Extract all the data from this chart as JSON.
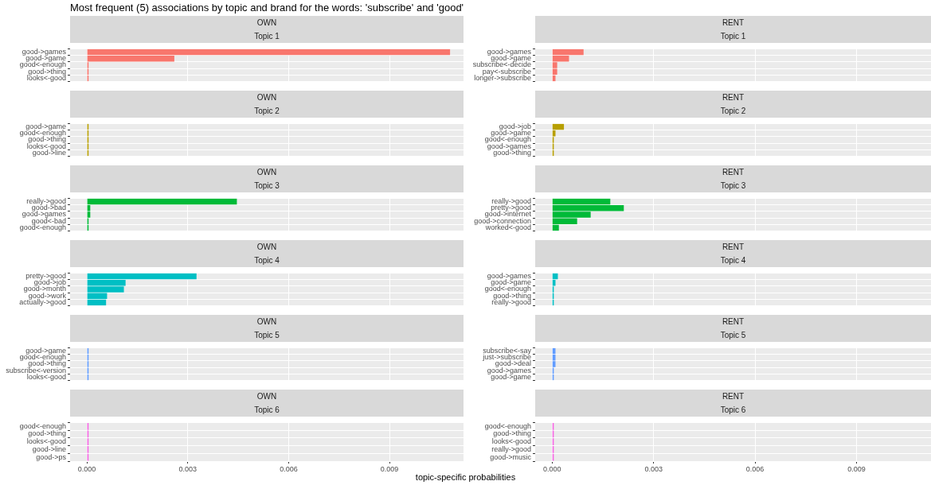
{
  "chart_data": [
    {
      "type": "bar",
      "orientation": "horizontal",
      "title": "OWN",
      "subtitle": "Topic 1",
      "annotations": [
        "Most frequent (5) associations by topic and brand for the words: 'subscribe' and 'good'"
      ],
      "categories": [
        "good->games",
        "good->game",
        "good<-enough",
        "good->thing",
        "looks<-good"
      ],
      "values": [
        0.0108,
        0.0026,
        5e-05,
        5e-05,
        5e-05
      ],
      "color": "#f8766d",
      "xlim": [
        -0.0005,
        0.0112
      ],
      "xticks": [
        0,
        0.003,
        0.006,
        0.009
      ],
      "grid": true,
      "tick_labels": "y"
    },
    {
      "type": "bar",
      "orientation": "horizontal",
      "title": "RENT",
      "subtitle": "Topic 1",
      "categories": [
        "good->games",
        "good->game",
        "subscribe<-decide",
        "pay<-subscribe",
        "longer->subscribe"
      ],
      "values": [
        0.00093,
        0.0005,
        0.00015,
        0.00015,
        0.0001
      ],
      "color": "#f8766d",
      "xlim": [
        -0.0005,
        0.0112
      ],
      "xticks": [
        0,
        0.003,
        0.006,
        0.009
      ],
      "grid": true,
      "tick_labels": "y"
    },
    {
      "type": "bar",
      "orientation": "horizontal",
      "title": "OWN",
      "subtitle": "Topic 2",
      "categories": [
        "good->game",
        "good<-enough",
        "good->thing",
        "looks<-good",
        "good->line"
      ],
      "values": [
        5e-05,
        5e-05,
        5e-05,
        5e-05,
        5e-05
      ],
      "color": "#b79f00",
      "xlim": [
        -0.0005,
        0.0112
      ],
      "xticks": [
        0,
        0.003,
        0.006,
        0.009
      ],
      "grid": true,
      "tick_labels": "y"
    },
    {
      "type": "bar",
      "orientation": "horizontal",
      "title": "RENT",
      "subtitle": "Topic 2",
      "categories": [
        "good->job",
        "good->game",
        "good<-enough",
        "good->games",
        "good->thing"
      ],
      "values": [
        0.00035,
        0.0001,
        5e-05,
        5e-05,
        5e-05
      ],
      "color": "#b79f00",
      "xlim": [
        -0.0005,
        0.0112
      ],
      "xticks": [
        0,
        0.003,
        0.006,
        0.009
      ],
      "grid": true,
      "tick_labels": "y"
    },
    {
      "type": "bar",
      "orientation": "horizontal",
      "title": "OWN",
      "subtitle": "Topic 3",
      "categories": [
        "really->good",
        "good->bad",
        "good->games",
        "good<-bad",
        "good<-enough"
      ],
      "values": [
        0.00446,
        0.0001,
        0.0001,
        5e-05,
        5e-05
      ],
      "color": "#00ba38",
      "xlim": [
        -0.0005,
        0.0112
      ],
      "xticks": [
        0,
        0.003,
        0.006,
        0.009
      ],
      "grid": true,
      "tick_labels": "y"
    },
    {
      "type": "bar",
      "orientation": "horizontal",
      "title": "RENT",
      "subtitle": "Topic 3",
      "categories": [
        "really->good",
        "pretty->good",
        "good->internet",
        "good->connection",
        "worked<-good"
      ],
      "values": [
        0.00172,
        0.00212,
        0.00114,
        0.00074,
        0.0002
      ],
      "color": "#00ba38",
      "xlim": [
        -0.0005,
        0.0112
      ],
      "xticks": [
        0,
        0.003,
        0.006,
        0.009
      ],
      "grid": true,
      "tick_labels": "y"
    },
    {
      "type": "bar",
      "orientation": "horizontal",
      "title": "OWN",
      "subtitle": "Topic 4",
      "categories": [
        "pretty->good",
        "good->job",
        "good->month",
        "good->work",
        "actually->good"
      ],
      "values": [
        0.00326,
        0.00115,
        0.0011,
        0.0006,
        0.00057
      ],
      "color": "#00bfc4",
      "xlim": [
        -0.0005,
        0.0112
      ],
      "xticks": [
        0,
        0.003,
        0.006,
        0.009
      ],
      "grid": true,
      "tick_labels": "y"
    },
    {
      "type": "bar",
      "orientation": "horizontal",
      "title": "RENT",
      "subtitle": "Topic 4",
      "categories": [
        "good->games",
        "good->game",
        "good<-enough",
        "good->thing",
        "really->good"
      ],
      "values": [
        0.00017,
        0.0001,
        5e-05,
        5e-05,
        5e-05
      ],
      "color": "#00bfc4",
      "xlim": [
        -0.0005,
        0.0112
      ],
      "xticks": [
        0,
        0.003,
        0.006,
        0.009
      ],
      "grid": true,
      "tick_labels": "y"
    },
    {
      "type": "bar",
      "orientation": "horizontal",
      "title": "OWN",
      "subtitle": "Topic 5",
      "categories": [
        "good->game",
        "good<-enough",
        "good->thing",
        "subscribe<-version",
        "looks<-good"
      ],
      "values": [
        5e-05,
        5e-05,
        5e-05,
        5e-05,
        5e-05
      ],
      "color": "#619cff",
      "xlim": [
        -0.0005,
        0.0112
      ],
      "xticks": [
        0,
        0.003,
        0.006,
        0.009
      ],
      "grid": true,
      "tick_labels": "y"
    },
    {
      "type": "bar",
      "orientation": "horizontal",
      "title": "RENT",
      "subtitle": "Topic 5",
      "categories": [
        "subscribe<-say",
        "just->subscribe",
        "good->deal",
        "good->games",
        "good->game"
      ],
      "values": [
        0.0001,
        0.0001,
        0.0001,
        5e-05,
        5e-05
      ],
      "color": "#619cff",
      "xlim": [
        -0.0005,
        0.0112
      ],
      "xticks": [
        0,
        0.003,
        0.006,
        0.009
      ],
      "grid": true,
      "tick_labels": "y"
    },
    {
      "type": "bar",
      "orientation": "horizontal",
      "title": "OWN",
      "subtitle": "Topic 6",
      "xlabel": "topic-specific probabilities",
      "categories": [
        "good<-enough",
        "good->thing",
        "looks<-good",
        "good->line",
        "good->ps"
      ],
      "values": [
        5e-05,
        5e-05,
        5e-05,
        5e-05,
        5e-05
      ],
      "color": "#f564e3",
      "xlim": [
        -0.0005,
        0.0112
      ],
      "xticks": [
        {
          "value": 0,
          "label": "0.000"
        },
        {
          "value": 0.003,
          "label": "0.003"
        },
        {
          "value": 0.006,
          "label": "0.006"
        },
        {
          "value": 0.009,
          "label": "0.009"
        }
      ],
      "grid": true
    },
    {
      "type": "bar",
      "orientation": "horizontal",
      "title": "RENT",
      "subtitle": "Topic 6",
      "categories": [
        "good<-enough",
        "good->thing",
        "looks<-good",
        "really->good",
        "good->music"
      ],
      "values": [
        5e-05,
        5e-05,
        5e-05,
        5e-05,
        5e-05
      ],
      "color": "#f564e3",
      "xlim": [
        -0.0005,
        0.0112
      ],
      "xticks": [
        {
          "value": 0,
          "label": "0.000"
        },
        {
          "value": 0.003,
          "label": "0.003"
        },
        {
          "value": 0.006,
          "label": "0.006"
        },
        {
          "value": 0.009,
          "label": "0.009"
        }
      ],
      "grid": true
    }
  ]
}
